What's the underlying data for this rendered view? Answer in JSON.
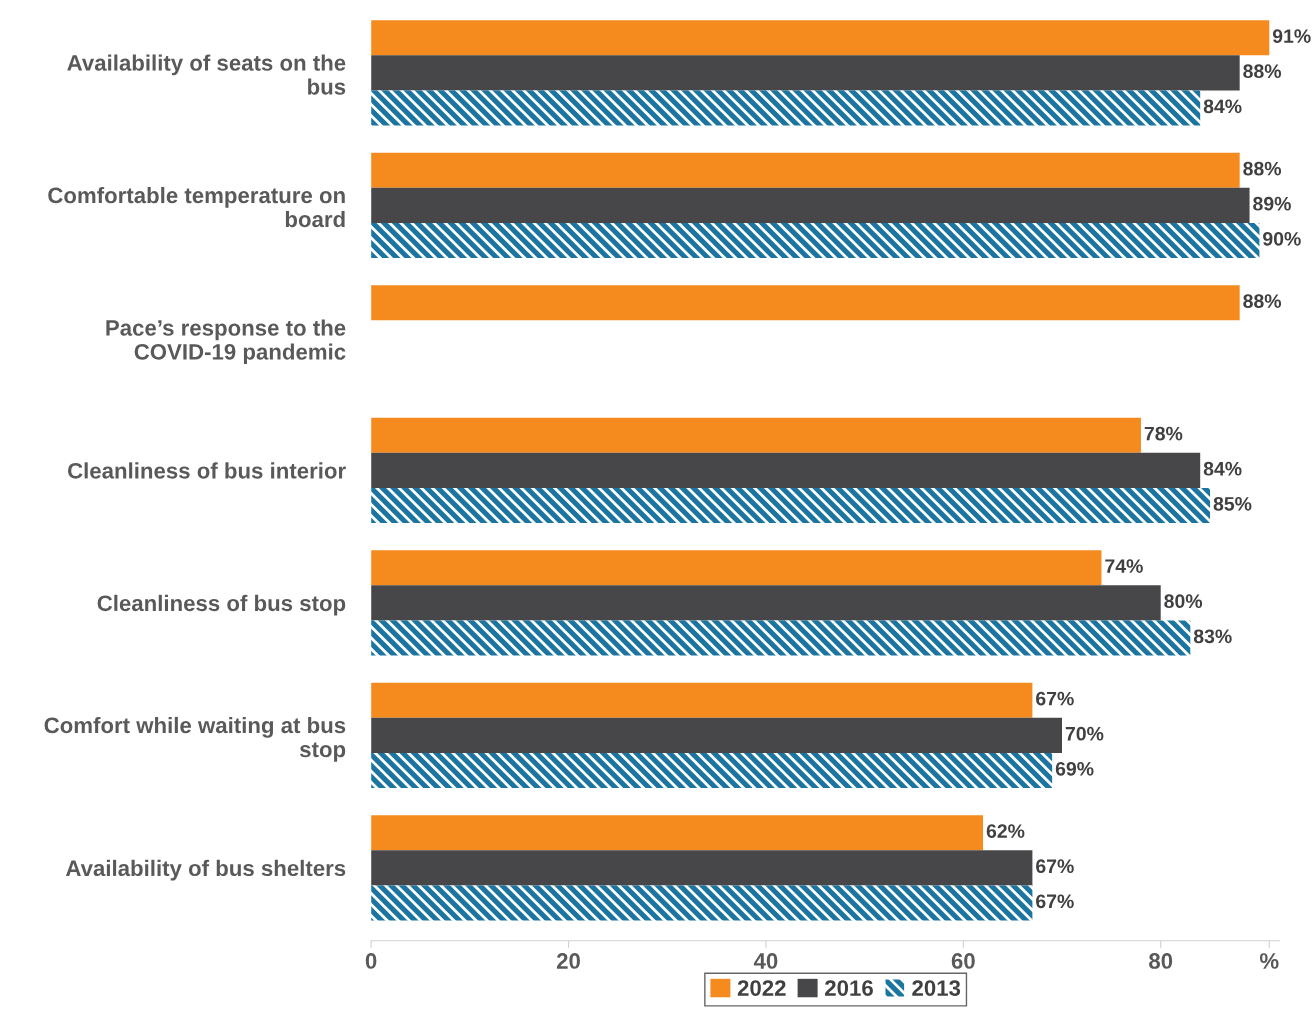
{
  "chart_data": {
    "type": "bar",
    "orientation": "horizontal",
    "categories": [
      "Availability of seats on the bus",
      "Comfortable temperature on board",
      "Pace’s response to the COVID-19 pandemic",
      "Cleanliness of bus interior",
      "Cleanliness of bus stop",
      "Comfort while waiting at bus stop",
      "Availability of bus shelters"
    ],
    "series": [
      {
        "name": "2022",
        "color": "#f58b1f",
        "values": [
          91,
          88,
          88,
          78,
          74,
          67,
          62
        ],
        "value_labels": [
          "91%",
          "88%",
          "88%",
          "78%",
          "74%",
          "67%",
          "62%"
        ]
      },
      {
        "name": "2016",
        "color": "#474749",
        "values": [
          88,
          89,
          null,
          84,
          80,
          70,
          67
        ],
        "value_labels": [
          "88%",
          "89%",
          null,
          "84%",
          "80%",
          "70%",
          "67%"
        ]
      },
      {
        "name": "2013",
        "color": "#1b75a0",
        "values": [
          84,
          90,
          null,
          85,
          83,
          69,
          67
        ],
        "value_labels": [
          "84%",
          "90%",
          null,
          "85%",
          "83%",
          "69%",
          "67%"
        ]
      }
    ],
    "xlim": [
      0,
      92
    ],
    "xticks": [
      0,
      20,
      40,
      60,
      80,
      {
        "value": 91,
        "label": "%"
      }
    ],
    "grid": false,
    "legend": "bottom"
  }
}
